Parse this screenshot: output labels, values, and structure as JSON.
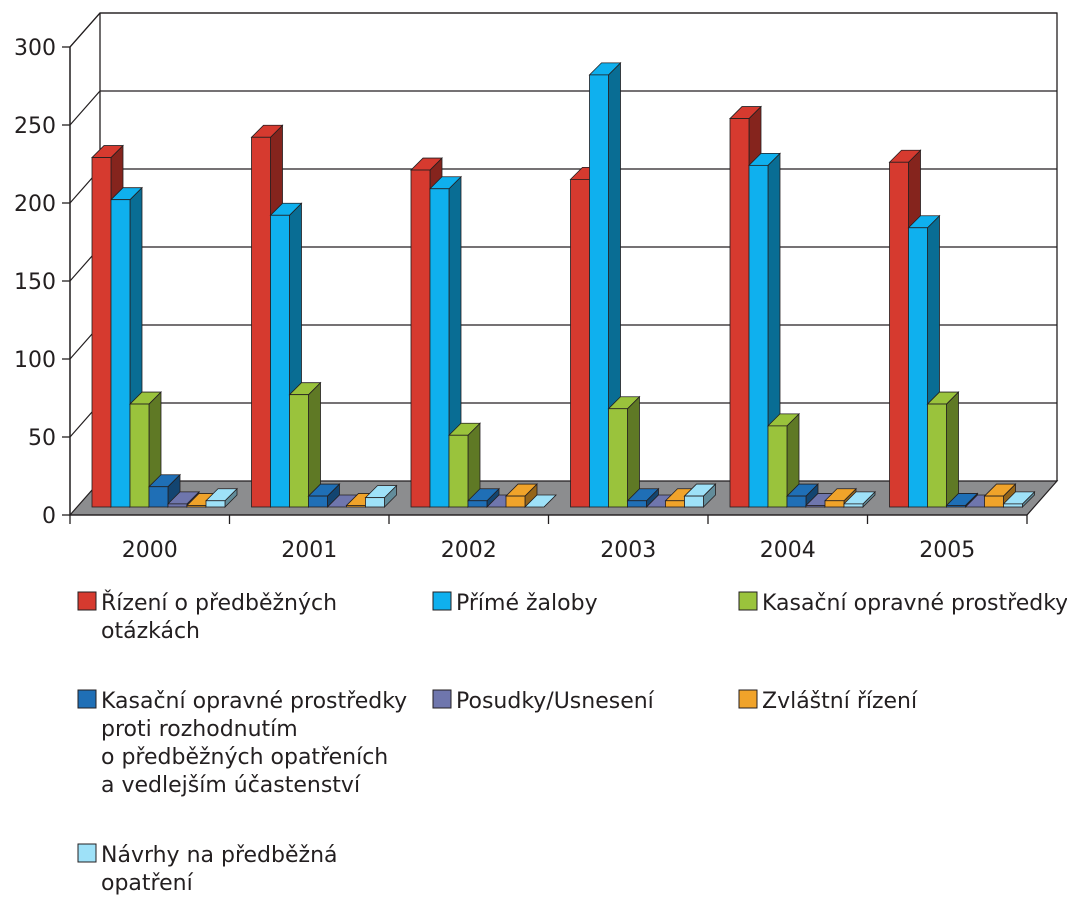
{
  "chart_data": {
    "type": "bar",
    "bar_style": "3d",
    "categories": [
      "2000",
      "2001",
      "2002",
      "2003",
      "2004",
      "2005"
    ],
    "ylim": [
      0,
      300
    ],
    "yticks": [
      0,
      50,
      100,
      150,
      200,
      250,
      300
    ],
    "grid": true,
    "legend_position": "bottom",
    "series": [
      {
        "name": "Řízení o předběžných otázkách",
        "color": "#d63a2f",
        "values": [
          224,
          237,
          216,
          210,
          249,
          221
        ]
      },
      {
        "name": "Přímé žaloby",
        "color": "#0fb0ee",
        "values": [
          197,
          187,
          204,
          277,
          219,
          179
        ]
      },
      {
        "name": "Kasační opravné prostředky",
        "color": "#9ac33c",
        "values": [
          66,
          72,
          46,
          63,
          52,
          66
        ]
      },
      {
        "name": "Kasační opravné prostředky proti rozhodnutím o předběžných opatřeních a vedlejším účastenství",
        "color": "#1f6fb6",
        "values": [
          13,
          7,
          4,
          4,
          7,
          1
        ]
      },
      {
        "name": "Posudky/Usnesení",
        "color": "#6f76ad",
        "values": [
          2,
          0,
          0,
          0,
          1,
          0
        ]
      },
      {
        "name": "Zvláštní řízení",
        "color": "#f0a32a",
        "values": [
          1,
          1,
          7,
          4,
          4,
          7
        ]
      },
      {
        "name": "Návrhy na předběžná opatření",
        "color": "#9ee1f8",
        "values": [
          4,
          6,
          0,
          7,
          2,
          2
        ]
      }
    ],
    "legend_rows": [
      [
        "Řízení o předběžných",
        "otázkách"
      ],
      [
        "Přímé žaloby"
      ],
      [
        "Kasační opravné prostředky"
      ],
      [
        "Kasační opravné prostředky",
        "proti rozhodnutím",
        "o předběžných opatřeních",
        "a vedlejším účastenství"
      ],
      [
        "Posudky/Usnesení"
      ],
      [
        "Zvláštní řízení"
      ],
      [
        "Návrhy na předběžná",
        "opatření"
      ]
    ]
  }
}
